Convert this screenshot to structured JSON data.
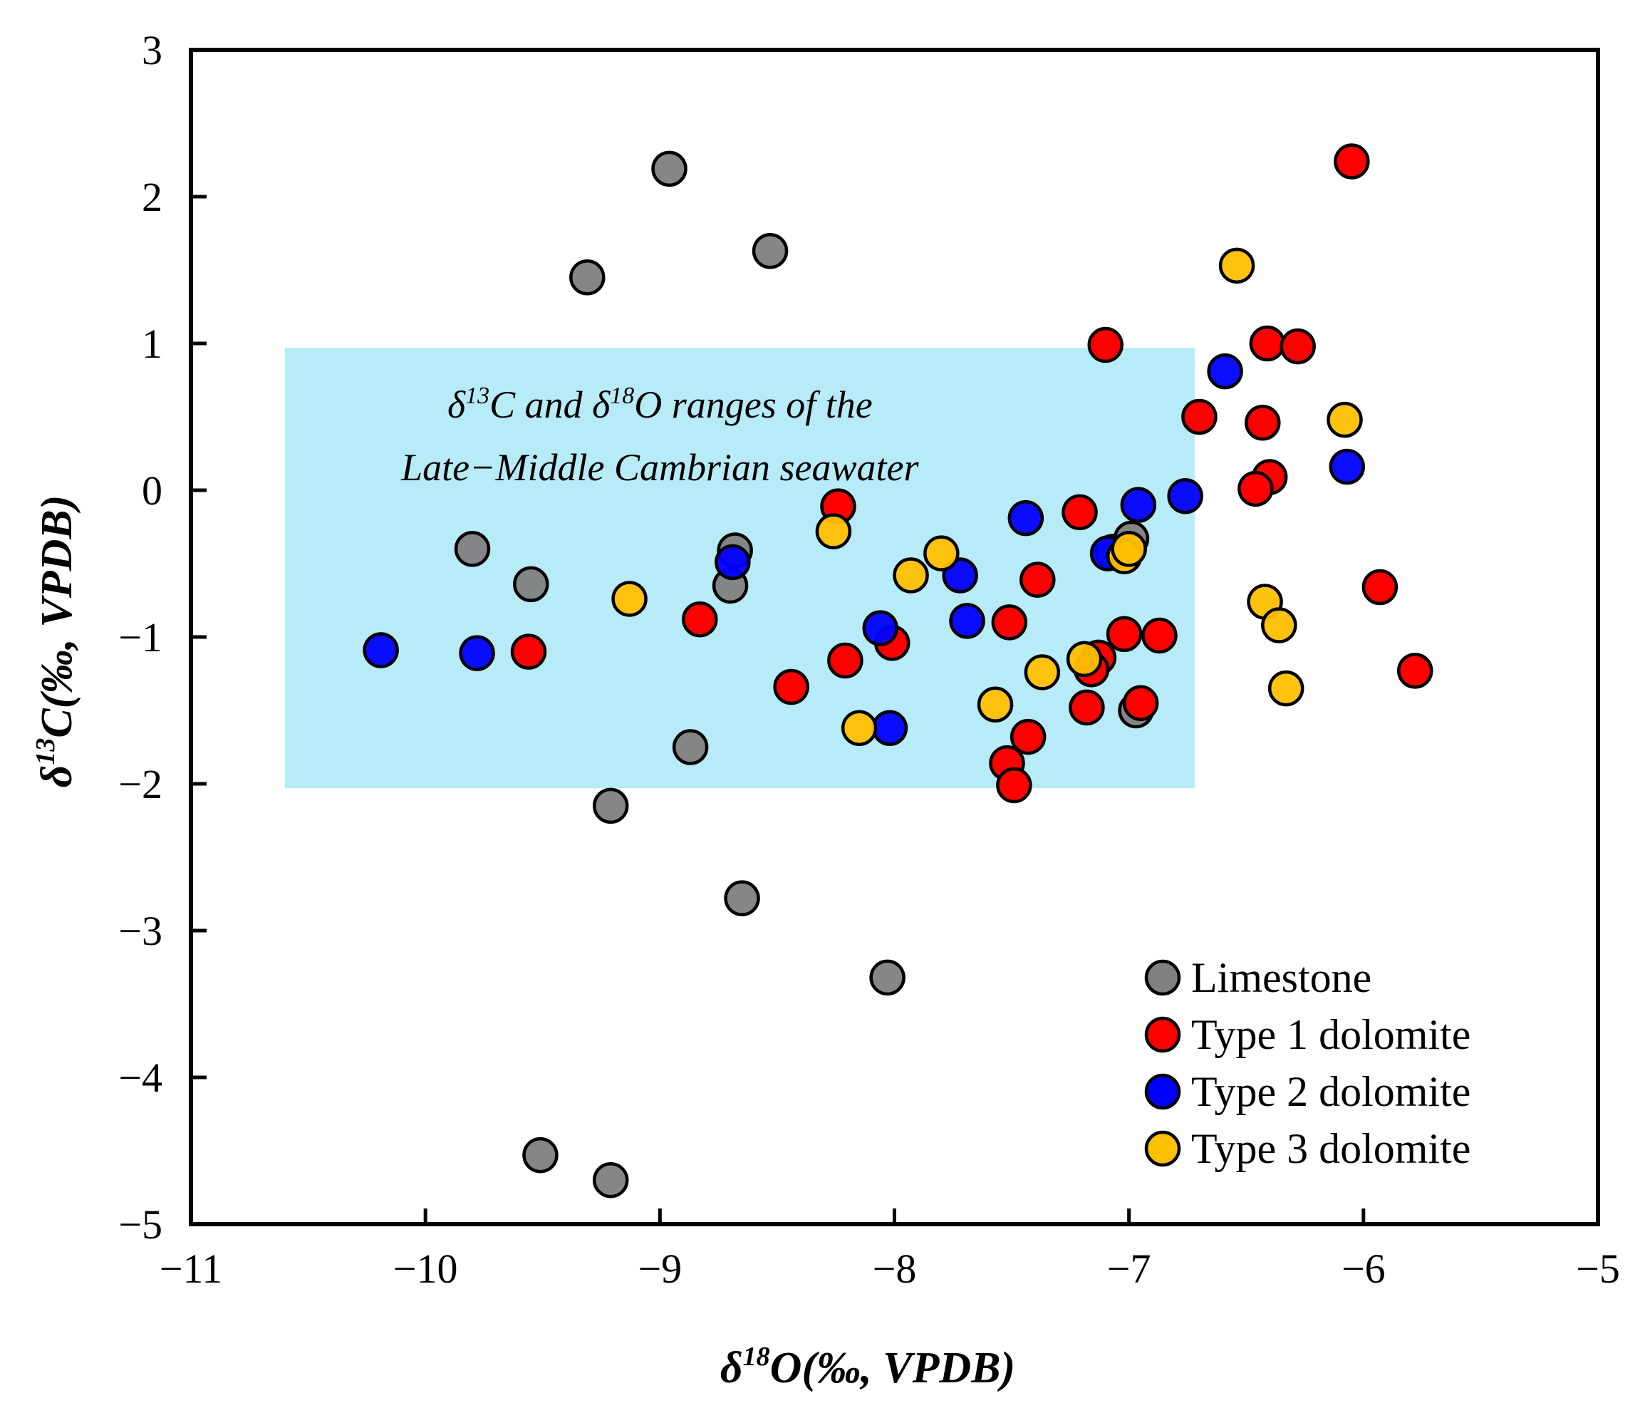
{
  "chart_data": {
    "type": "scatter",
    "xlabel": {
      "prefix": "δ",
      "sup": "18",
      "rest": "O(‰, VPDB)"
    },
    "ylabel": {
      "prefix": "δ",
      "sup": "13",
      "rest": "C(‰, VPDB)"
    },
    "xlim": [
      -11,
      -5
    ],
    "ylim": [
      -5,
      3
    ],
    "x_ticks": [
      -11,
      -10,
      -9,
      -8,
      -7,
      -6,
      -5
    ],
    "y_ticks": [
      -5,
      -4,
      -3,
      -2,
      -1,
      0,
      1,
      2,
      3
    ],
    "x_tick_labels": [
      "−11",
      "−10",
      "−9",
      "−8",
      "−7",
      "−6",
      "−5"
    ],
    "y_tick_labels": [
      "−5",
      "−4",
      "−3",
      "−2",
      "−1",
      "0",
      "1",
      "2",
      "3"
    ],
    "shaded_region": {
      "x_range": [
        -10.6,
        -6.72
      ],
      "y_range": [
        -2.03,
        0.97
      ],
      "color": "#b7ebf7",
      "label_line1": {
        "d1": "δ",
        "s1": "13",
        "m1": "C and ",
        "d2": "δ",
        "s2": "18",
        "m2": "O ranges of the"
      },
      "label_line2": "Late−Middle Cambrian seawater",
      "label_anchor": [
        -9.0,
        0.3
      ]
    },
    "series": [
      {
        "name": "Limestone",
        "color": "#808080",
        "points": [
          [
            -8.96,
            2.19
          ],
          [
            -9.31,
            1.45
          ],
          [
            -8.53,
            1.63
          ],
          [
            -9.8,
            -0.4
          ],
          [
            -9.55,
            -0.64
          ],
          [
            -8.68,
            -0.41
          ],
          [
            -8.7,
            -0.65
          ],
          [
            -8.87,
            -1.75
          ],
          [
            -9.21,
            -2.15
          ],
          [
            -8.65,
            -2.78
          ],
          [
            -8.03,
            -3.32
          ],
          [
            -9.51,
            -4.53
          ],
          [
            -9.21,
            -4.7
          ],
          [
            -6.97,
            -1.5
          ],
          [
            -7.07,
            -0.42
          ],
          [
            -6.99,
            -0.33
          ]
        ]
      },
      {
        "name": "Type 1 dolomite",
        "color": "#ff0000",
        "points": [
          [
            -6.05,
            2.24
          ],
          [
            -7.1,
            0.99
          ],
          [
            -6.41,
            1.0
          ],
          [
            -6.28,
            0.98
          ],
          [
            -6.7,
            0.5
          ],
          [
            -6.43,
            0.46
          ],
          [
            -6.4,
            0.09
          ],
          [
            -6.46,
            0.01
          ],
          [
            -8.24,
            -0.11
          ],
          [
            -7.21,
            -0.15
          ],
          [
            -7.39,
            -0.61
          ],
          [
            -5.93,
            -0.66
          ],
          [
            -8.83,
            -0.88
          ],
          [
            -9.56,
            -1.1
          ],
          [
            -8.21,
            -1.16
          ],
          [
            -8.01,
            -1.04
          ],
          [
            -7.51,
            -0.9
          ],
          [
            -7.02,
            -0.98
          ],
          [
            -6.87,
            -0.99
          ],
          [
            -7.13,
            -1.14
          ],
          [
            -7.16,
            -1.22
          ],
          [
            -8.44,
            -1.34
          ],
          [
            -7.18,
            -1.48
          ],
          [
            -6.95,
            -1.45
          ],
          [
            -7.43,
            -1.68
          ],
          [
            -7.52,
            -1.86
          ],
          [
            -7.49,
            -2.01
          ],
          [
            -5.78,
            -1.23
          ]
        ]
      },
      {
        "name": "Type 2 dolomite",
        "color": "#0000ff",
        "points": [
          [
            -6.59,
            0.81
          ],
          [
            -6.07,
            0.16
          ],
          [
            -6.76,
            -0.04
          ],
          [
            -6.96,
            -0.1
          ],
          [
            -7.44,
            -0.19
          ],
          [
            -7.09,
            -0.43
          ],
          [
            -8.69,
            -0.49
          ],
          [
            -7.72,
            -0.58
          ],
          [
            -7.69,
            -0.89
          ],
          [
            -8.06,
            -0.94
          ],
          [
            -10.19,
            -1.09
          ],
          [
            -9.78,
            -1.11
          ],
          [
            -8.02,
            -1.62
          ]
        ]
      },
      {
        "name": "Type 3 dolomite",
        "color": "#ffc000",
        "points": [
          [
            -6.54,
            1.53
          ],
          [
            -6.08,
            0.48
          ],
          [
            -8.26,
            -0.28
          ],
          [
            -7.8,
            -0.43
          ],
          [
            -7.93,
            -0.58
          ],
          [
            -7.02,
            -0.45
          ],
          [
            -7.0,
            -0.4
          ],
          [
            -9.13,
            -0.74
          ],
          [
            -6.42,
            -0.76
          ],
          [
            -6.36,
            -0.92
          ],
          [
            -7.37,
            -1.24
          ],
          [
            -7.19,
            -1.15
          ],
          [
            -6.33,
            -1.35
          ],
          [
            -7.57,
            -1.46
          ],
          [
            -8.15,
            -1.62
          ]
        ]
      }
    ],
    "legend": {
      "position": "bottom-right",
      "entries": [
        "Limestone",
        "Type 1 dolomite",
        "Type 2 dolomite",
        "Type 3 dolomite"
      ]
    }
  }
}
